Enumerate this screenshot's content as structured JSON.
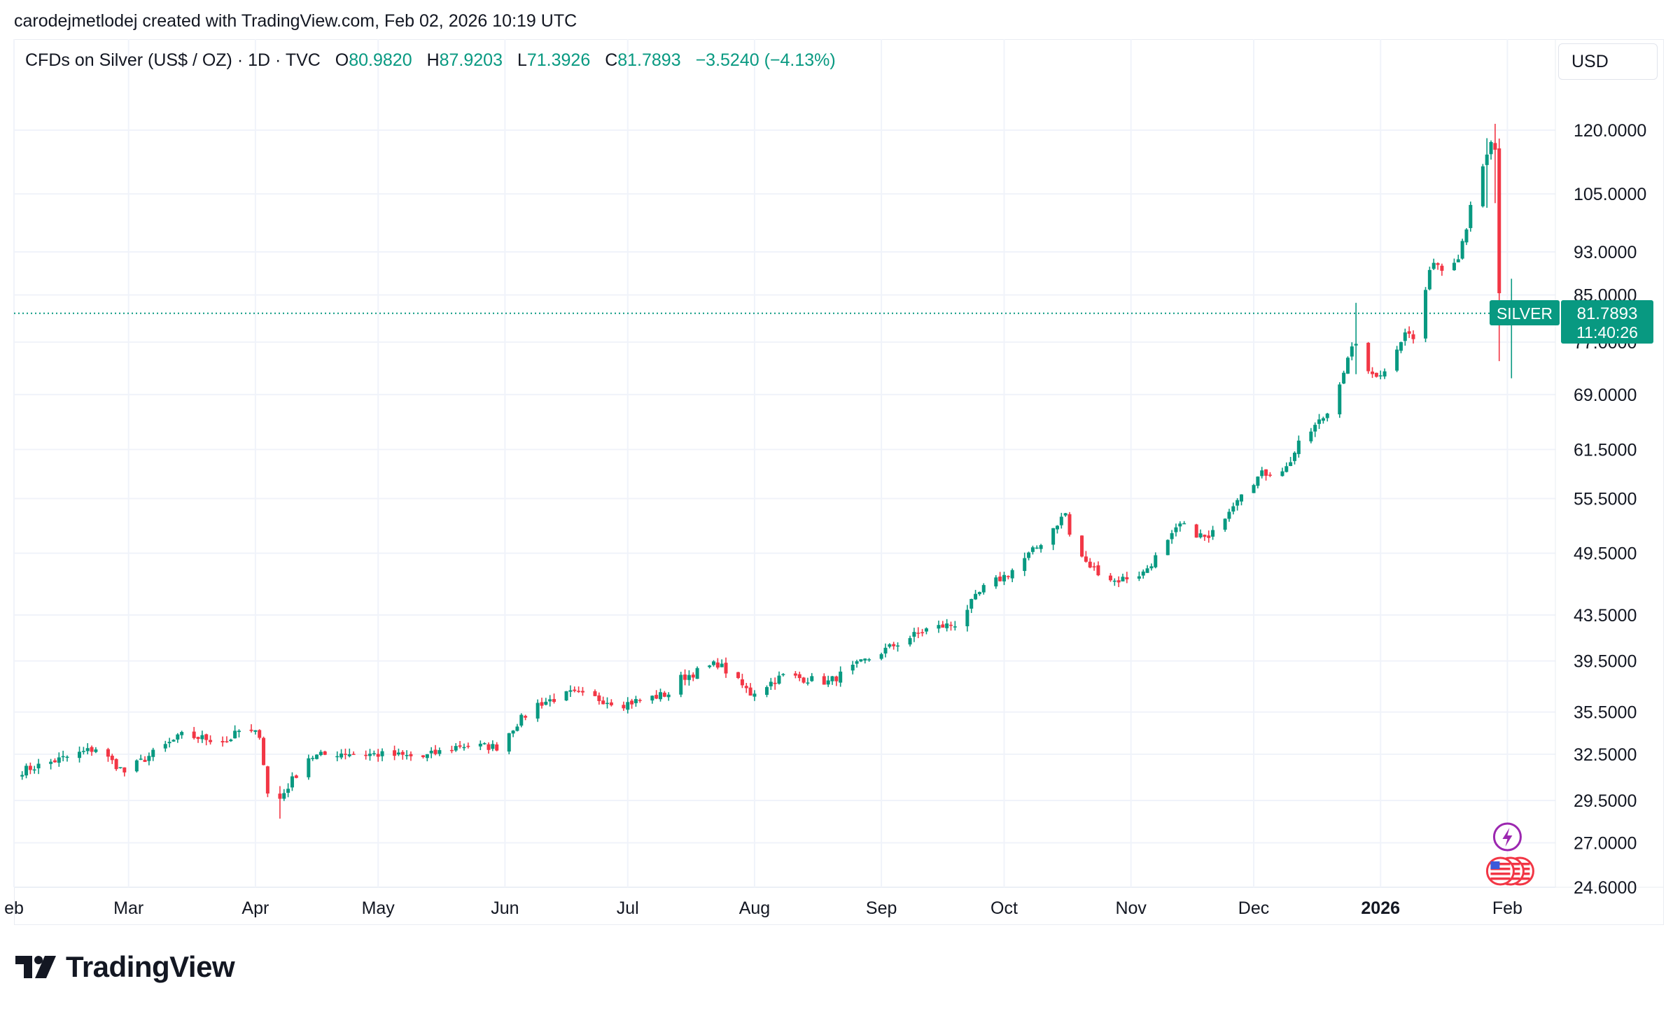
{
  "caption": "carodejmetlodej created with TradingView.com, Feb 02, 2026 10:19 UTC",
  "legend": {
    "symbol": "CFDs on Silver (US$ / OZ) · 1D · TVC",
    "o_label": "O",
    "o_value": "80.9820",
    "h_label": "H",
    "h_value": "87.9203",
    "l_label": "L",
    "l_value": "71.3926",
    "c_label": "C",
    "c_value": "81.7893",
    "change": "−3.5240 (−4.13%)"
  },
  "currency_button": "USD",
  "price_tag": {
    "symbol": "SILVER",
    "price": "81.7893",
    "countdown": "11:40:26"
  },
  "logo_text": "TradingView",
  "colors": {
    "up": "#089981",
    "down": "#f23645",
    "grid": "#f0f3fa",
    "text": "#131722"
  },
  "chart_data": {
    "type": "candlestick",
    "scale": "log",
    "y_ticks": [
      120,
      105,
      93,
      85,
      77,
      69,
      61.5,
      55.5,
      49.5,
      43.5,
      39.5,
      35.5,
      32.5,
      29.5,
      27,
      24.6
    ],
    "y_tick_labels": [
      "120.0000",
      "105.0000",
      "93.0000",
      "85.0000",
      "77.0000",
      "69.0000",
      "61.5000",
      "55.5000",
      "49.5000",
      "43.5000",
      "39.5000",
      "35.5000",
      "32.5000",
      "29.5000",
      "27.0000",
      "24.6000"
    ],
    "x_ticks": [
      {
        "label": "eb",
        "date": "2025-02-01",
        "bold": false
      },
      {
        "label": "Mar",
        "date": "2025-03-01",
        "bold": false
      },
      {
        "label": "Apr",
        "date": "2025-04-01",
        "bold": false
      },
      {
        "label": "May",
        "date": "2025-05-01",
        "bold": false
      },
      {
        "label": "Jun",
        "date": "2025-06-01",
        "bold": false
      },
      {
        "label": "Jul",
        "date": "2025-07-01",
        "bold": false
      },
      {
        "label": "Aug",
        "date": "2025-08-01",
        "bold": false
      },
      {
        "label": "Sep",
        "date": "2025-09-01",
        "bold": false
      },
      {
        "label": "Oct",
        "date": "2025-10-01",
        "bold": false
      },
      {
        "label": "Nov",
        "date": "2025-11-01",
        "bold": false
      },
      {
        "label": "Dec",
        "date": "2025-12-01",
        "bold": false
      },
      {
        "label": "2026",
        "date": "2026-01-01",
        "bold": true
      },
      {
        "label": "Feb",
        "date": "2026-02-01",
        "bold": false
      }
    ],
    "last_price": 81.7893,
    "price_path": [
      [
        "2025-02-03",
        31.4
      ],
      [
        "2025-02-14",
        32.3
      ],
      [
        "2025-02-21",
        32.9
      ],
      [
        "2025-02-28",
        31.3
      ],
      [
        "2025-03-05",
        32.2
      ],
      [
        "2025-03-14",
        33.8
      ],
      [
        "2025-03-25",
        33.4
      ],
      [
        "2025-03-28",
        34.1
      ],
      [
        "2025-04-02",
        33.9
      ],
      [
        "2025-04-04",
        29.9
      ],
      [
        "2025-04-07",
        29.6
      ],
      [
        "2025-04-10",
        30.8
      ],
      [
        "2025-04-14",
        32.3
      ],
      [
        "2025-04-22",
        32.6
      ],
      [
        "2025-04-30",
        32.5
      ],
      [
        "2025-05-12",
        32.3
      ],
      [
        "2025-05-21",
        33.1
      ],
      [
        "2025-05-30",
        33.0
      ],
      [
        "2025-06-04",
        34.7
      ],
      [
        "2025-06-09",
        36.1
      ],
      [
        "2025-06-17",
        36.9
      ],
      [
        "2025-06-30",
        36.1
      ],
      [
        "2025-07-11",
        36.9
      ],
      [
        "2025-07-14",
        38.1
      ],
      [
        "2025-07-23",
        39.3
      ],
      [
        "2025-07-31",
        36.9
      ],
      [
        "2025-08-08",
        38.3
      ],
      [
        "2025-08-19",
        37.8
      ],
      [
        "2025-08-29",
        39.7
      ],
      [
        "2025-09-05",
        41.0
      ],
      [
        "2025-09-12",
        42.2
      ],
      [
        "2025-09-19",
        42.7
      ],
      [
        "2025-09-26",
        46.0
      ],
      [
        "2025-10-02",
        47.4
      ],
      [
        "2025-10-09",
        50.1
      ],
      [
        "2025-10-16",
        53.8
      ],
      [
        "2025-10-17",
        51.4
      ],
      [
        "2025-10-21",
        48.4
      ],
      [
        "2025-10-28",
        46.7
      ],
      [
        "2025-11-04",
        47.5
      ],
      [
        "2025-11-10",
        50.6
      ],
      [
        "2025-11-13",
        52.5
      ],
      [
        "2025-11-20",
        50.9
      ],
      [
        "2025-11-28",
        56.4
      ],
      [
        "2025-12-03",
        58.4
      ],
      [
        "2025-12-09",
        59.2
      ],
      [
        "2025-12-12",
        62.1
      ],
      [
        "2025-12-19",
        66.4
      ],
      [
        "2025-12-26",
        77.2
      ],
      [
        "2025-12-29",
        71.9
      ],
      [
        "2026-01-02",
        72.3
      ],
      [
        "2026-01-07",
        78.9
      ],
      [
        "2026-01-09",
        77.4
      ],
      [
        "2026-01-14",
        91.6
      ],
      [
        "2026-01-16",
        89.7
      ],
      [
        "2026-01-20",
        92.4
      ],
      [
        "2026-01-22",
        98.2
      ],
      [
        "2026-01-23",
        103.1
      ],
      [
        "2026-01-26",
        110.4
      ],
      [
        "2026-01-28",
        116.5
      ],
      [
        "2026-01-29",
        115.3
      ],
      [
        "2026-01-30",
        85.3
      ],
      [
        "2026-02-02",
        81.79
      ]
    ],
    "spikes": [
      {
        "date": "2025-04-07",
        "high": 30.4,
        "low": 28.4
      },
      {
        "date": "2025-12-26",
        "high": 83.6,
        "low": 72.0
      },
      {
        "date": "2026-01-27",
        "high": 118.0,
        "low": 102.0
      },
      {
        "date": "2026-01-29",
        "high": 121.6,
        "low": 103.0
      },
      {
        "date": "2026-01-30",
        "high": 117.9,
        "low": 74.0
      },
      {
        "date": "2026-02-02",
        "high": 87.92,
        "low": 71.39
      }
    ],
    "event_markers": [
      {
        "type": "lightning",
        "date": "2026-02-01"
      },
      {
        "type": "us-flag",
        "date": "2026-02-01",
        "count": 3
      }
    ]
  }
}
